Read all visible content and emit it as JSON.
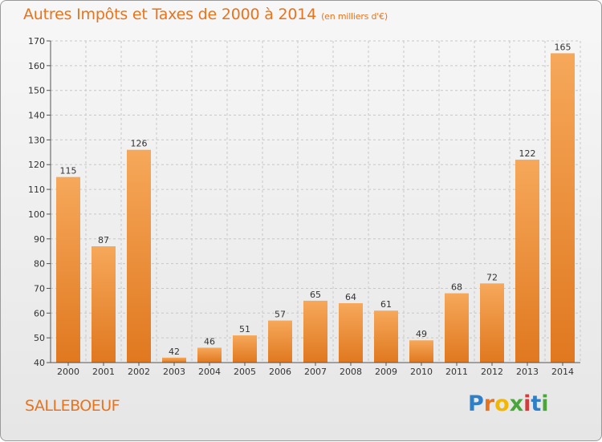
{
  "title": "Autres Impôts et Taxes de 2000 à 2014",
  "title_unit": "(en milliers d'€)",
  "commune": "SALLEBOEUF",
  "logo": {
    "text": "Proxiti",
    "letters": [
      {
        "ch": "P",
        "color": "#2f7fc8"
      },
      {
        "ch": "r",
        "color": "#e8731c"
      },
      {
        "ch": "o",
        "color": "#f2b705"
      },
      {
        "ch": "x",
        "color": "#4aa63a"
      },
      {
        "ch": "i",
        "color": "#d43c3c"
      },
      {
        "ch": "t",
        "color": "#2f7fc8"
      },
      {
        "ch": "i",
        "color": "#4aa63a"
      }
    ]
  },
  "colors": {
    "title": "#e8731c",
    "bar_top": "#f6a85a",
    "bar_bottom": "#e0781f",
    "grid": "#c8c8c8",
    "axis_text": "#333333"
  },
  "chart_data": {
    "type": "bar",
    "categories": [
      "2000",
      "2001",
      "2002",
      "2003",
      "2004",
      "2005",
      "2006",
      "2007",
      "2008",
      "2009",
      "2010",
      "2011",
      "2012",
      "2013",
      "2014"
    ],
    "values": [
      115,
      87,
      126,
      42,
      46,
      51,
      57,
      65,
      64,
      61,
      49,
      68,
      72,
      122,
      165
    ],
    "ylim": [
      40,
      170
    ],
    "yticks": [
      40,
      50,
      60,
      70,
      80,
      90,
      100,
      110,
      120,
      130,
      140,
      150,
      160,
      170
    ],
    "grid": true,
    "title": "Autres Impôts et Taxes de 2000 à 2014",
    "xlabel": "",
    "ylabel": ""
  }
}
